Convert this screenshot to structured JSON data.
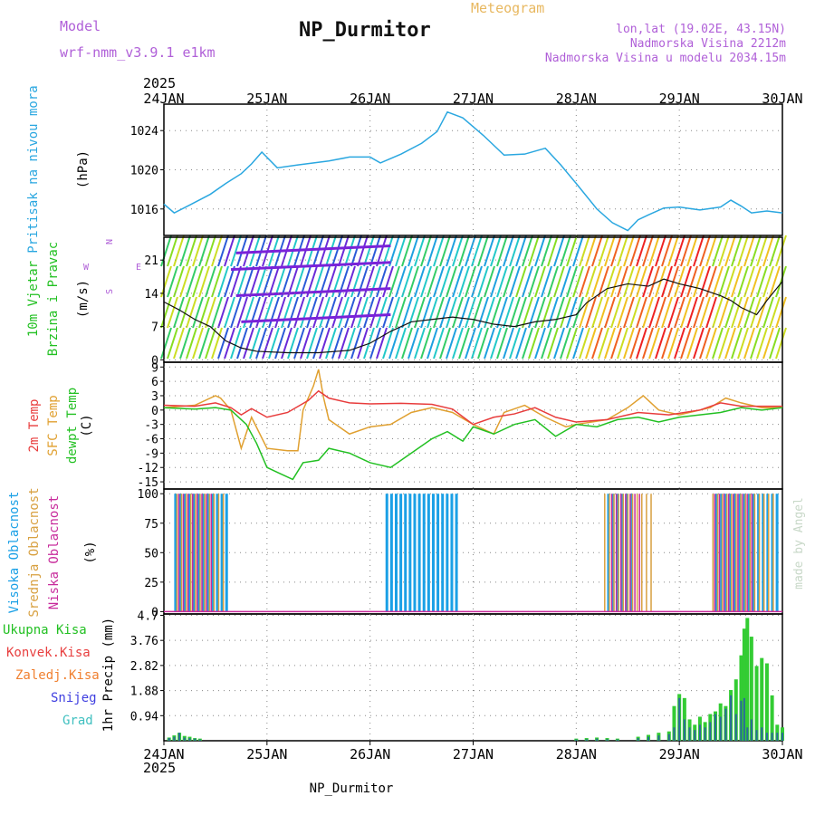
{
  "header": {
    "model_label": "Model",
    "model_name": "wrf-nmm_v3.9.1 e1km",
    "station_title": "NP_Durmitor",
    "meteogram_label": "Meteogram",
    "coords": "lon,lat (19.02E, 43.15N)",
    "altitude": "Nadmorska Visina 2212m",
    "model_altitude": "Nadmorska Visina u modelu 2034.15m"
  },
  "footer": {
    "station": "NP_Durmitor",
    "watermark": "made by Angel"
  },
  "colors": {
    "pressure": "#2aa7e0",
    "t2m": "#e83c3c",
    "sfc": "#e0a030",
    "dewpt": "#22c022",
    "high_cloud": "#1aa0e6",
    "mid_cloud": "#d8a040",
    "low_cloud": "#c82c9c",
    "precip_total": "#33cc33",
    "precip_conv": "#e84040",
    "precip_frozen": "#f08030",
    "precip_snow": "#4040e0",
    "precip_graupel": "#40c0c0"
  },
  "chart_data": {
    "x_axis": {
      "year": "2025",
      "ticks": [
        "24JAN",
        "25JAN",
        "26JAN",
        "27JAN",
        "28JAN",
        "29JAN",
        "30JAN"
      ]
    },
    "panels": [
      {
        "id": "pressure",
        "type": "line",
        "ylabel_main": "Pritisak na nivou mora",
        "ylabel_unit": "(hPa)",
        "ylim": [
          1013.3,
          1026.7
        ],
        "yticks": [
          "1016",
          "1020",
          "1024"
        ],
        "series": [
          {
            "key": "pressure",
            "x": [
              0,
              0.1,
              0.25,
              0.45,
              0.6,
              0.75,
              0.85,
              0.95,
              1.1,
              1.3,
              1.6,
              1.8,
              2.0,
              2.1,
              2.3,
              2.5,
              2.65,
              2.75,
              2.9,
              3.1,
              3.3,
              3.5,
              3.7,
              3.85,
              4.0,
              4.2,
              4.35,
              4.5,
              4.6,
              4.7,
              4.85,
              5.0,
              5.2,
              5.4,
              5.5,
              5.6,
              5.7,
              5.85,
              6.0
            ],
            "y": [
              1016.5,
              1015.6,
              1016.4,
              1017.5,
              1018.6,
              1019.6,
              1020.6,
              1021.8,
              1020.2,
              1020.5,
              1020.9,
              1021.3,
              1021.3,
              1020.7,
              1021.6,
              1022.7,
              1023.9,
              1025.9,
              1025.3,
              1023.5,
              1021.5,
              1021.6,
              1022.2,
              1020.5,
              1018.6,
              1016.0,
              1014.6,
              1013.8,
              1014.9,
              1015.4,
              1016.1,
              1016.2,
              1015.9,
              1016.2,
              1016.9,
              1016.3,
              1015.6,
              1015.8,
              1015.6
            ]
          }
        ]
      },
      {
        "id": "wind",
        "type": "line",
        "ylabel_main": "10m Vjetar",
        "ylabel_sub": "Brzina i Pravac",
        "ylabel_unit": "(m/s)",
        "compass": {
          "n": "N",
          "w": "W",
          "e": "E",
          "s": "S"
        },
        "ylim": [
          -0.5,
          25.8
        ],
        "yticks": [
          "0",
          "7",
          "14",
          "21"
        ],
        "series": [
          {
            "key": "wind_speed",
            "x": [
              0,
              0.15,
              0.3,
              0.45,
              0.6,
              0.75,
              0.9,
              1.2,
              1.5,
              1.8,
              2.0,
              2.2,
              2.4,
              2.6,
              2.8,
              3.0,
              3.2,
              3.4,
              3.6,
              3.8,
              4.0,
              4.1,
              4.3,
              4.5,
              4.7,
              4.85,
              5.0,
              5.2,
              5.4,
              5.5,
              5.6,
              5.75,
              5.85,
              6.0
            ],
            "y": [
              12.2,
              10.5,
              8.5,
              7.0,
              4.0,
              2.5,
              1.8,
              1.5,
              1.5,
              2.0,
              3.5,
              6.0,
              8.0,
              8.5,
              9.0,
              8.5,
              7.5,
              7.0,
              8.0,
              8.5,
              9.5,
              12.0,
              15.0,
              16.0,
              15.5,
              17.0,
              16.0,
              15.0,
              13.5,
              12.5,
              11.0,
              9.5,
              12.5,
              16.5
            ]
          }
        ]
      },
      {
        "id": "temperature",
        "type": "line",
        "ylabel_t2m": "2m Temp",
        "ylabel_sfc": "SFC Temp",
        "ylabel_dew": "dewpt Temp",
        "ylabel_unit": "(C)",
        "ylim": [
          -16.5,
          10
        ],
        "yticks": [
          "9",
          "6",
          "3",
          "0",
          "-3",
          "-6",
          "-9",
          "-12",
          "-15"
        ],
        "series": [
          {
            "key": "t2m",
            "x": [
              0,
              0.3,
              0.5,
              0.65,
              0.75,
              0.85,
              1.0,
              1.2,
              1.4,
              1.5,
              1.6,
              1.8,
              2.0,
              2.3,
              2.6,
              2.8,
              3.0,
              3.2,
              3.4,
              3.6,
              3.8,
              4.0,
              4.3,
              4.6,
              4.9,
              5.2,
              5.4,
              5.6,
              5.8,
              6.0
            ],
            "y": [
              1.0,
              0.8,
              1.5,
              0.5,
              -1.0,
              0.3,
              -1.5,
              -0.5,
              2.0,
              4.0,
              2.5,
              1.5,
              1.3,
              1.4,
              1.2,
              0.2,
              -3.0,
              -1.5,
              -0.8,
              0.5,
              -1.5,
              -2.5,
              -2.0,
              -0.5,
              -1.0,
              0.0,
              1.5,
              0.8,
              0.8,
              0.8
            ]
          },
          {
            "key": "sfc",
            "x": [
              0,
              0.3,
              0.5,
              0.55,
              0.65,
              0.75,
              0.85,
              1.0,
              1.2,
              1.3,
              1.35,
              1.45,
              1.5,
              1.55,
              1.6,
              1.8,
              2.0,
              2.2,
              2.4,
              2.6,
              2.8,
              3.0,
              3.2,
              3.3,
              3.5,
              3.7,
              3.9,
              4.0,
              4.3,
              4.5,
              4.65,
              4.8,
              5.0,
              5.3,
              5.45,
              5.6,
              5.8,
              6.0
            ],
            "y": [
              0.5,
              1.0,
              3.0,
              2.5,
              0.0,
              -8.0,
              -1.5,
              -8.0,
              -8.5,
              -8.5,
              0.0,
              5.0,
              8.5,
              2.5,
              -2.0,
              -5.0,
              -3.5,
              -3.0,
              -0.5,
              0.5,
              -0.5,
              -3.0,
              -5.0,
              -0.5,
              1.0,
              -1.5,
              -3.5,
              -3.0,
              -2.0,
              0.5,
              3.0,
              0.0,
              -1.0,
              0.5,
              2.5,
              1.5,
              0.5,
              0.5
            ]
          },
          {
            "key": "dewpt",
            "x": [
              0,
              0.3,
              0.5,
              0.65,
              0.8,
              0.9,
              1.0,
              1.1,
              1.25,
              1.35,
              1.5,
              1.6,
              1.8,
              2.0,
              2.2,
              2.4,
              2.6,
              2.75,
              2.9,
              3.0,
              3.2,
              3.4,
              3.6,
              3.8,
              4.0,
              4.2,
              4.4,
              4.6,
              4.8,
              5.0,
              5.2,
              5.4,
              5.6,
              5.8,
              6.0
            ],
            "y": [
              0.5,
              0.2,
              0.5,
              0.0,
              -3.0,
              -7.0,
              -12.0,
              -13.0,
              -14.5,
              -11.0,
              -10.5,
              -8.0,
              -9.0,
              -11.0,
              -12.0,
              -9.0,
              -6.0,
              -4.5,
              -6.5,
              -3.5,
              -5.0,
              -3.0,
              -2.0,
              -5.5,
              -3.0,
              -3.5,
              -2.0,
              -1.5,
              -2.5,
              -1.5,
              -1.0,
              -0.5,
              0.5,
              0.0,
              0.5
            ]
          }
        ]
      },
      {
        "id": "clouds",
        "type": "bar",
        "ylabel_high": "Visoka Oblacnost",
        "ylabel_mid": "Srednja Oblacnost",
        "ylabel_low": "Niska Oblacnost",
        "ylabel_unit": "(%)",
        "ylim": [
          0,
          100
        ],
        "yticks": [
          "0",
          "25",
          "50",
          "75",
          "100"
        ],
        "cloud_bands": [
          {
            "key": "high_cloud",
            "ranges": [
              [
                0.1,
                0.6
              ],
              [
                2.15,
                2.85
              ],
              [
                4.3,
                4.55
              ],
              [
                5.35,
                5.95
              ]
            ]
          },
          {
            "key": "mid_cloud",
            "ranges": [
              [
                0.1,
                0.55
              ],
              [
                4.25,
                4.7
              ],
              [
                5.3,
                5.9
              ]
            ]
          },
          {
            "key": "low_cloud",
            "ranges": [
              [
                0.1,
                0.45
              ],
              [
                4.3,
                4.6
              ],
              [
                5.3,
                5.7
              ]
            ]
          }
        ]
      },
      {
        "id": "precip",
        "type": "bar",
        "ylabel_total": "Ukupna Kisa",
        "ylabel_conv": "Konvek.Kisa",
        "ylabel_frozen": "Zaledj.Kisa",
        "ylabel_snow": "Snijeg",
        "ylabel_graupel": "Grad",
        "ylabel_unit": "1hr Precip (mm)",
        "ylim": [
          0,
          4.7
        ],
        "yticks": [
          "0.94",
          "1.88",
          "2.82",
          "3.76",
          "4.7"
        ],
        "bars": [
          {
            "x": 0.05,
            "total": 0.12,
            "snow": 0.1
          },
          {
            "x": 0.1,
            "total": 0.2,
            "snow": 0.15
          },
          {
            "x": 0.15,
            "total": 0.3,
            "snow": 0.3
          },
          {
            "x": 0.2,
            "total": 0.18,
            "snow": 0.12
          },
          {
            "x": 0.25,
            "total": 0.15,
            "snow": 0.1
          },
          {
            "x": 0.3,
            "total": 0.1,
            "snow": 0.08
          },
          {
            "x": 0.35,
            "total": 0.08,
            "snow": 0.05
          },
          {
            "x": 4.0,
            "total": 0.08,
            "snow": 0.05
          },
          {
            "x": 4.1,
            "total": 0.1,
            "snow": 0.06
          },
          {
            "x": 4.2,
            "total": 0.12,
            "snow": 0.08
          },
          {
            "x": 4.3,
            "total": 0.1,
            "snow": 0.06
          },
          {
            "x": 4.4,
            "total": 0.08,
            "snow": 0.05
          },
          {
            "x": 4.6,
            "total": 0.15,
            "snow": 0.1
          },
          {
            "x": 4.7,
            "total": 0.22,
            "snow": 0.15
          },
          {
            "x": 4.8,
            "total": 0.3,
            "snow": 0.2
          },
          {
            "x": 4.9,
            "total": 0.35,
            "snow": 0.25
          },
          {
            "x": 4.95,
            "total": 1.3,
            "snow": 0.5
          },
          {
            "x": 5.0,
            "total": 1.75,
            "snow": 1.6
          },
          {
            "x": 5.05,
            "total": 1.6,
            "snow": 0.8
          },
          {
            "x": 5.1,
            "total": 0.8,
            "snow": 0.5
          },
          {
            "x": 5.15,
            "total": 0.6,
            "snow": 0.4
          },
          {
            "x": 5.2,
            "total": 0.9,
            "snow": 0.6
          },
          {
            "x": 5.25,
            "total": 0.7,
            "snow": 0.5
          },
          {
            "x": 5.3,
            "total": 1.0,
            "snow": 0.7
          },
          {
            "x": 5.35,
            "total": 1.1,
            "snow": 1.0
          },
          {
            "x": 5.4,
            "total": 1.4,
            "snow": 0.9
          },
          {
            "x": 5.45,
            "total": 1.3,
            "snow": 1.2
          },
          {
            "x": 5.5,
            "total": 1.9,
            "snow": 1.7
          },
          {
            "x": 5.55,
            "total": 2.3,
            "snow": 1.0
          },
          {
            "x": 5.6,
            "total": 3.2,
            "snow": 1.5
          },
          {
            "x": 5.63,
            "total": 4.2,
            "snow": 1.6
          },
          {
            "x": 5.66,
            "total": 4.6,
            "snow": 0.5
          },
          {
            "x": 5.7,
            "total": 3.9,
            "snow": 0.8
          },
          {
            "x": 5.75,
            "total": 2.8,
            "snow": 0.4
          },
          {
            "x": 5.8,
            "total": 3.1,
            "snow": 0.5
          },
          {
            "x": 5.85,
            "total": 2.9,
            "snow": 0.3
          },
          {
            "x": 5.9,
            "total": 1.7,
            "snow": 0.3
          },
          {
            "x": 5.95,
            "total": 0.6,
            "snow": 0.3
          },
          {
            "x": 6.0,
            "total": 0.5,
            "snow": 0.3
          }
        ]
      }
    ]
  }
}
